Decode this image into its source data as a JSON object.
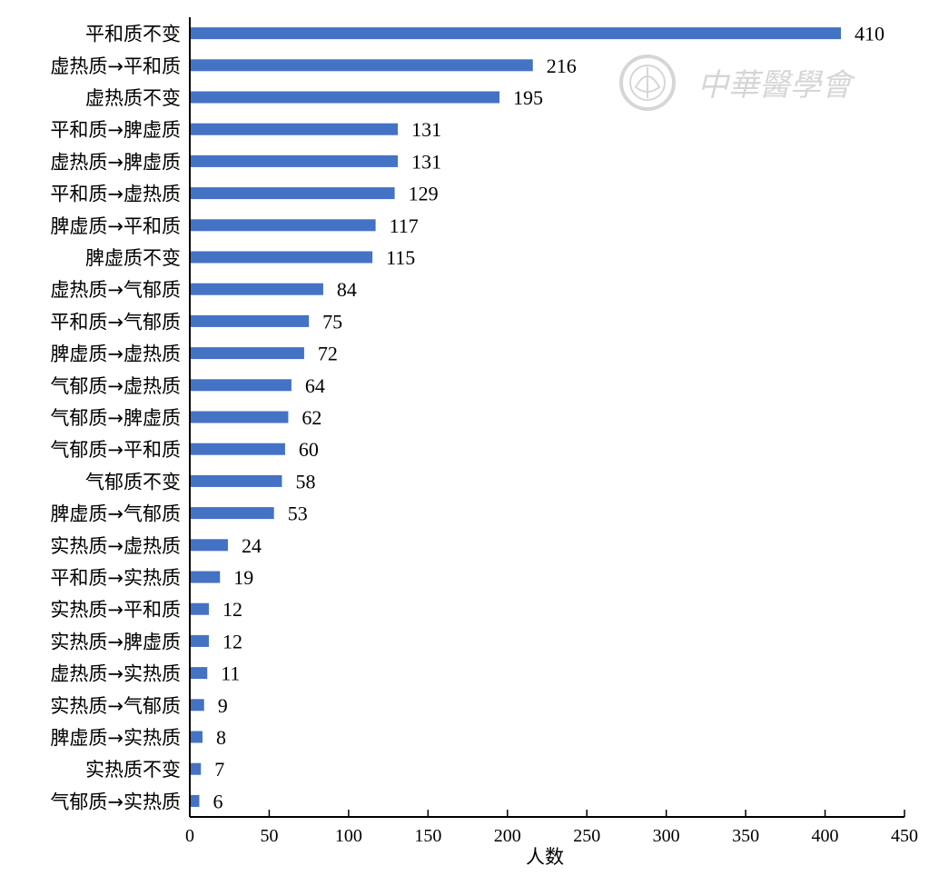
{
  "chart_data": {
    "type": "bar",
    "orientation": "horizontal",
    "categories": [
      "平和质不变",
      "虚热质→平和质",
      "虚热质不变",
      "平和质→脾虚质",
      "虚热质→脾虚质",
      "平和质→虚热质",
      "脾虚质→平和质",
      "脾虚质不变",
      "虚热质→气郁质",
      "平和质→气郁质",
      "脾虚质→虚热质",
      "气郁质→虚热质",
      "气郁质→脾虚质",
      "气郁质→平和质",
      "气郁质不变",
      "脾虚质→气郁质",
      "实热质→虚热质",
      "平和质→实热质",
      "实热质→平和质",
      "实热质→脾虚质",
      "虚热质→实热质",
      "实热质→气郁质",
      "脾虚质→实热质",
      "实热质不变",
      "气郁质→实热质"
    ],
    "values": [
      410,
      216,
      195,
      131,
      131,
      129,
      117,
      115,
      84,
      75,
      72,
      64,
      62,
      60,
      58,
      53,
      24,
      19,
      12,
      12,
      11,
      9,
      8,
      7,
      6
    ],
    "xlabel": "人数",
    "ylabel": "",
    "xlim": [
      0,
      450
    ],
    "xticks": [
      "0",
      "50",
      "100",
      "150",
      "200",
      "250",
      "300",
      "350",
      "400",
      "450"
    ],
    "data_labels": true,
    "grid": false,
    "bar_color": "#4472c4"
  },
  "watermark": {
    "text": "中華醫學會",
    "color": "#d6d6d6"
  }
}
